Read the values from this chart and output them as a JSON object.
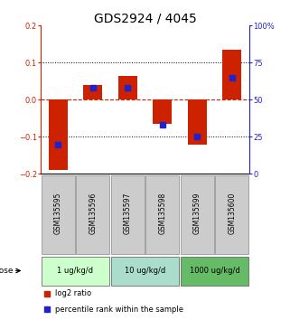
{
  "title": "GDS2924 / 4045",
  "samples": [
    "GSM135595",
    "GSM135596",
    "GSM135597",
    "GSM135598",
    "GSM135599",
    "GSM135600"
  ],
  "log2_ratios": [
    -0.19,
    0.04,
    0.065,
    -0.065,
    -0.12,
    0.135
  ],
  "percentile_ranks": [
    20,
    58,
    58,
    33,
    25,
    65
  ],
  "ylim_left": [
    -0.2,
    0.2
  ],
  "ylim_right": [
    0,
    100
  ],
  "yticks_left": [
    -0.2,
    -0.1,
    0.0,
    0.1,
    0.2
  ],
  "yticks_right": [
    0,
    25,
    50,
    75,
    100
  ],
  "dose_groups": [
    {
      "label": "1 ug/kg/d",
      "indices": [
        0,
        1
      ]
    },
    {
      "label": "10 ug/kg/d",
      "indices": [
        2,
        3
      ]
    },
    {
      "label": "1000 ug/kg/d",
      "indices": [
        4,
        5
      ]
    }
  ],
  "dose_bg_colors": [
    "#ccffcc",
    "#aaddcc",
    "#66bb66"
  ],
  "bar_color": "#cc2200",
  "percentile_color": "#2222cc",
  "bar_width": 0.55,
  "percentile_marker_size": 4,
  "background_color": "#ffffff",
  "zero_line_color": "#cc2200",
  "title_fontsize": 10,
  "tick_fontsize": 6,
  "sample_bg_color": "#cccccc",
  "dose_label": "dose",
  "legend_red": "log2 ratio",
  "legend_blue": "percentile rank within the sample"
}
